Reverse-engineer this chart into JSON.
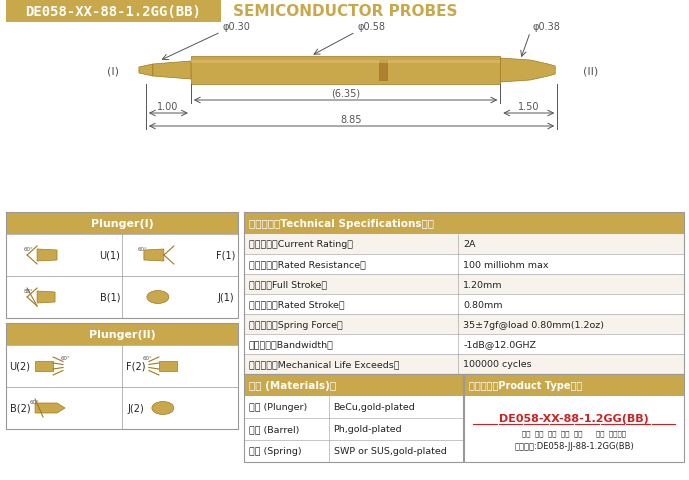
{
  "title_box_text": "DE058-XX-88-1.2GG(BB)",
  "title_box_color": "#C9A84C",
  "title_text_color": "#FFFFFF",
  "subtitle_text": "SEMICONDUCTOR PROBES",
  "subtitle_color": "#C9A84C",
  "bg_color": "#FFFFFF",
  "probe_color": "#C9A84C",
  "probe_dark": "#A07820",
  "dim_color": "#555555",
  "table_header_color": "#C9A84C",
  "table_border_color": "#999999",
  "specs": [
    [
      "额定电流（Current Rating）",
      "2A"
    ],
    [
      "额定电阶（Rated Resistance）",
      "100 milliohm max"
    ],
    [
      "满行程（Full Stroke）",
      "1.20mm"
    ],
    [
      "额定行程（Rated Stroke）",
      "0.80mm"
    ],
    [
      "额定弹力（Spring Force）",
      "35±7gf@load 0.80mm(1.2oz)"
    ],
    [
      "频率带宽（Bandwidth）",
      "-1dB@12.0GHZ"
    ],
    [
      "测试寿命（Mechanical Life Exceeds）",
      "100000 cycles"
    ]
  ],
  "materials": [
    [
      "针头 (Plunger)",
      "BeCu,gold-plated"
    ],
    [
      "针管 (Barrel)",
      "Ph,gold-plated"
    ],
    [
      "弹簧 (Spring)",
      "SWP or SUS,gold-plated"
    ]
  ],
  "product_type_title": "成品型号（Product Type）：",
  "product_model": "DE058-XX-88-1.2GG(BB)",
  "product_labels": "系列  规格  头型  行长  弹力      镀金  针头材质",
  "product_example": "订购举例:DE058-JJ-88-1.2GG(BB)",
  "plunger1_title": "Plunger(I)",
  "plunger2_title": "Plunger(II)",
  "dim_phi030": "φ0.30",
  "dim_phi058": "φ0.58",
  "dim_phi038": "φ0.38",
  "dim_635": "(6.35)",
  "dim_100": "1.00",
  "dim_150": "1.50",
  "dim_885": "8.85",
  "label_I": "(I)",
  "label_II": "(II)",
  "specs_title": "技术要求（Technical Specifications）：",
  "materials_title": "材质 (Materials)："
}
